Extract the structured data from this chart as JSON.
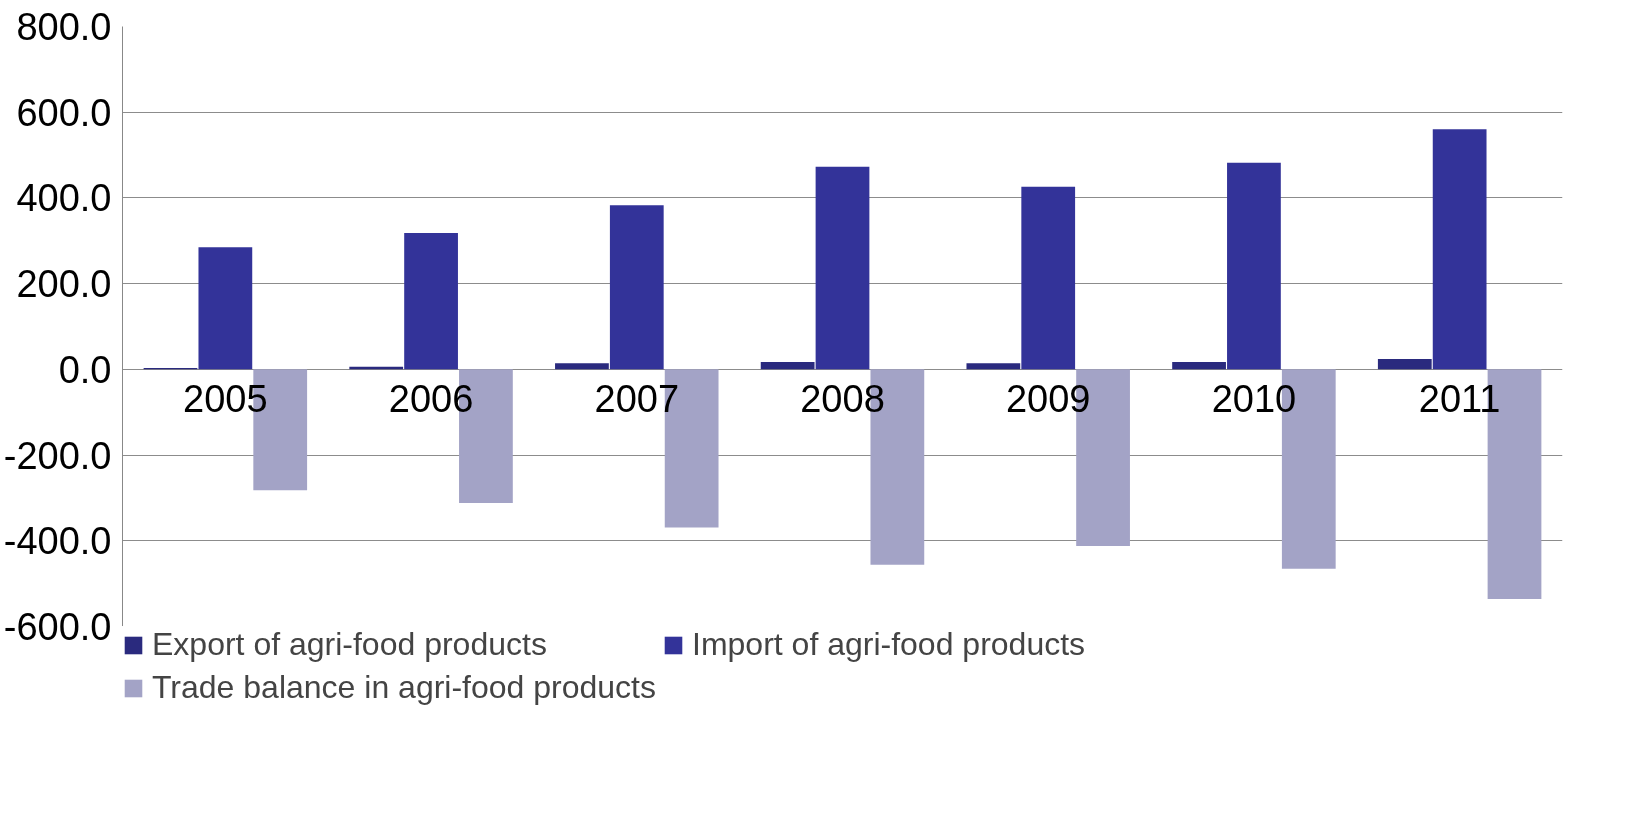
{
  "chart_data": {
    "type": "bar",
    "categories": [
      "2005",
      "2006",
      "2007",
      "2008",
      "2009",
      "2010",
      "2011"
    ],
    "series": [
      {
        "name": "Export of agri-food products",
        "color": "#2a2a7e",
        "values": [
          3,
          6,
          14,
          17,
          14,
          17,
          24
        ]
      },
      {
        "name": "Import of agri-food products",
        "color": "#333399",
        "values": [
          285,
          318,
          383,
          473,
          426,
          482,
          560
        ]
      },
      {
        "name": "Trade balance in agri-food products",
        "color": "#a3a3c6",
        "values": [
          -282,
          -312,
          -369,
          -456,
          -412,
          -465,
          -536
        ]
      }
    ],
    "ylim": [
      -600,
      800
    ],
    "yticks": [
      {
        "value": -600,
        "label": "-600.0"
      },
      {
        "value": -400,
        "label": "-400.0"
      },
      {
        "value": -200,
        "label": "-200.0"
      },
      {
        "value": 0,
        "label": "0.0"
      },
      {
        "value": 200,
        "label": "200.0"
      },
      {
        "value": 400,
        "label": "400.0"
      },
      {
        "value": 600,
        "label": "600.0"
      },
      {
        "value": 800,
        "label": "800.0"
      }
    ],
    "grid": "y",
    "legend": "bottom"
  }
}
